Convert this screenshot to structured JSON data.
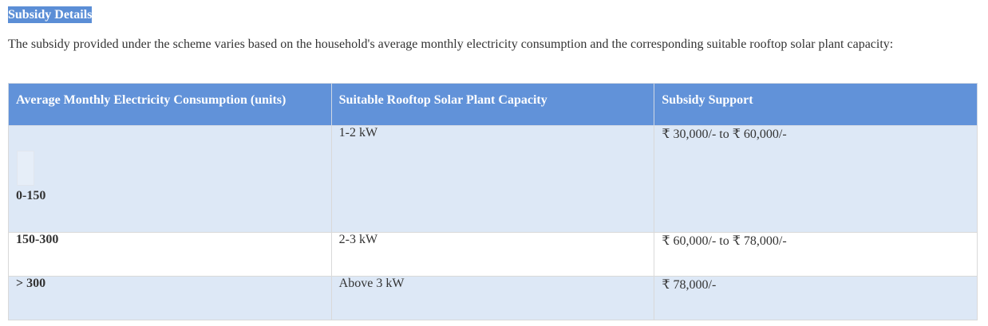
{
  "section": {
    "heading": "Subsidy Details",
    "intro": "The subsidy provided under the scheme varies based on the household's average monthly electricity consumption and the corresponding suitable rooftop solar plant capacity:"
  },
  "table": {
    "headers": [
      "Average Monthly Electricity Consumption (units)",
      "Suitable Rooftop Solar Plant Capacity",
      "Subsidy Support"
    ],
    "rows": [
      {
        "consumption": "0-150",
        "capacity": "1-2 kW",
        "subsidy": "₹ 30,000/- to ₹ 60,000/-"
      },
      {
        "consumption": "150-300",
        "capacity": "2-3 kW",
        "subsidy": "₹ 60,000/- to ₹ 78,000/-"
      },
      {
        "consumption": "> 300",
        "capacity": "Above 3 kW",
        "subsidy": "₹ 78,000/-"
      }
    ]
  },
  "colors": {
    "header_bg": "#6192d9",
    "heading_highlight": "#5b8ed6",
    "row_shaded": "#dde8f6",
    "row_plain": "#ffffff",
    "text": "#333333"
  }
}
